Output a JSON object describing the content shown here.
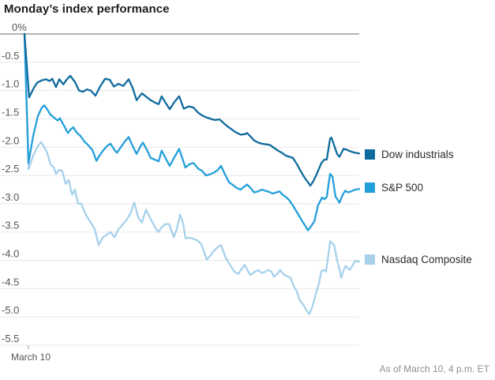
{
  "header": {
    "title": "Monday’s index performance"
  },
  "footer": {
    "note": "As of March 10, 4 p.m. ET"
  },
  "chart_data": {
    "type": "line",
    "title": "Monday’s index performance",
    "x_axis": {
      "tick_label": "March 10"
    },
    "y_axis": {
      "unit": "%",
      "min": -5.5,
      "max": 0,
      "ticks": [
        {
          "label": "0%",
          "value": 0
        },
        {
          "label": "-0.5",
          "value": -0.5
        },
        {
          "label": "-1.0",
          "value": -1.0
        },
        {
          "label": "-1.5",
          "value": -1.5
        },
        {
          "label": "-2.0",
          "value": -2.0
        },
        {
          "label": "-2.5",
          "value": -2.5
        },
        {
          "label": "-3.0",
          "value": -3.0
        },
        {
          "label": "-3.5",
          "value": -3.5
        },
        {
          "label": "-4.0",
          "value": -4.0
        },
        {
          "label": "-4.5",
          "value": -4.5
        },
        {
          "label": "-5.0",
          "value": -5.0
        },
        {
          "label": "-5.5",
          "value": -5.5
        }
      ]
    },
    "style": {
      "gridline_color": "#e8e8e8",
      "zero_line_color": "#9b9b9b",
      "tick_text_color": "#555555",
      "axis_tick_color": "#999999"
    },
    "legend_position": "right",
    "series": [
      {
        "name": "Nasdaq Composite",
        "color": "#a7d1eb",
        "points": [
          [
            0,
            0
          ],
          [
            0.012,
            -2.39
          ],
          [
            0.026,
            -2.15
          ],
          [
            0.04,
            -1.98
          ],
          [
            0.05,
            -1.91
          ],
          [
            0.059,
            -2.0
          ],
          [
            0.068,
            -2.1
          ],
          [
            0.078,
            -2.31
          ],
          [
            0.087,
            -2.35
          ],
          [
            0.094,
            -2.47
          ],
          [
            0.104,
            -2.4
          ],
          [
            0.113,
            -2.42
          ],
          [
            0.123,
            -2.65
          ],
          [
            0.132,
            -2.58
          ],
          [
            0.142,
            -2.84
          ],
          [
            0.151,
            -2.75
          ],
          [
            0.16,
            -3.0
          ],
          [
            0.17,
            -3.0
          ],
          [
            0.179,
            -3.14
          ],
          [
            0.189,
            -3.25
          ],
          [
            0.2,
            -3.35
          ],
          [
            0.21,
            -3.45
          ],
          [
            0.222,
            -3.73
          ],
          [
            0.233,
            -3.6
          ],
          [
            0.245,
            -3.55
          ],
          [
            0.257,
            -3.5
          ],
          [
            0.269,
            -3.59
          ],
          [
            0.281,
            -3.45
          ],
          [
            0.292,
            -3.38
          ],
          [
            0.304,
            -3.29
          ],
          [
            0.316,
            -3.18
          ],
          [
            0.328,
            -2.98
          ],
          [
            0.34,
            -3.25
          ],
          [
            0.351,
            -3.33
          ],
          [
            0.363,
            -3.1
          ],
          [
            0.375,
            -3.25
          ],
          [
            0.389,
            -3.4
          ],
          [
            0.399,
            -3.5
          ],
          [
            0.41,
            -3.42
          ],
          [
            0.42,
            -3.36
          ],
          [
            0.432,
            -3.36
          ],
          [
            0.446,
            -3.59
          ],
          [
            0.455,
            -3.45
          ],
          [
            0.465,
            -3.19
          ],
          [
            0.474,
            -3.35
          ],
          [
            0.481,
            -3.61
          ],
          [
            0.493,
            -3.6
          ],
          [
            0.505,
            -3.62
          ],
          [
            0.517,
            -3.65
          ],
          [
            0.528,
            -3.71
          ],
          [
            0.545,
            -3.99
          ],
          [
            0.557,
            -3.9
          ],
          [
            0.568,
            -3.82
          ],
          [
            0.578,
            -3.76
          ],
          [
            0.587,
            -3.73
          ],
          [
            0.601,
            -3.95
          ],
          [
            0.616,
            -4.1
          ],
          [
            0.627,
            -4.2
          ],
          [
            0.639,
            -4.24
          ],
          [
            0.649,
            -4.15
          ],
          [
            0.658,
            -4.08
          ],
          [
            0.667,
            -4.18
          ],
          [
            0.675,
            -4.26
          ],
          [
            0.686,
            -4.21
          ],
          [
            0.698,
            -4.17
          ],
          [
            0.708,
            -4.22
          ],
          [
            0.717,
            -4.21
          ],
          [
            0.729,
            -4.17
          ],
          [
            0.738,
            -4.2
          ],
          [
            0.745,
            -4.29
          ],
          [
            0.755,
            -4.24
          ],
          [
            0.764,
            -4.17
          ],
          [
            0.776,
            -4.26
          ],
          [
            0.785,
            -4.28
          ],
          [
            0.795,
            -4.31
          ],
          [
            0.804,
            -4.45
          ],
          [
            0.814,
            -4.55
          ],
          [
            0.823,
            -4.71
          ],
          [
            0.835,
            -4.8
          ],
          [
            0.842,
            -4.88
          ],
          [
            0.851,
            -4.95
          ],
          [
            0.861,
            -4.8
          ],
          [
            0.87,
            -4.6
          ],
          [
            0.88,
            -4.4
          ],
          [
            0.887,
            -4.19
          ],
          [
            0.894,
            -4.17
          ],
          [
            0.901,
            -4.2
          ],
          [
            0.908,
            -3.9
          ],
          [
            0.913,
            -3.66
          ],
          [
            0.92,
            -3.7
          ],
          [
            0.925,
            -3.73
          ],
          [
            0.934,
            -4.0
          ],
          [
            0.941,
            -4.15
          ],
          [
            0.946,
            -4.31
          ],
          [
            0.955,
            -4.15
          ],
          [
            0.96,
            -4.1
          ],
          [
            0.967,
            -4.15
          ],
          [
            0.972,
            -4.17
          ],
          [
            0.981,
            -4.08
          ],
          [
            0.988,
            -4.01
          ],
          [
            0.995,
            -4.02
          ],
          [
            1,
            -4.02
          ]
        ]
      },
      {
        "name": "S&P 500",
        "color": "#239fda",
        "points": [
          [
            0,
            0
          ],
          [
            0.012,
            -2.28
          ],
          [
            0.026,
            -1.8
          ],
          [
            0.04,
            -1.45
          ],
          [
            0.052,
            -1.3
          ],
          [
            0.059,
            -1.26
          ],
          [
            0.068,
            -1.33
          ],
          [
            0.078,
            -1.43
          ],
          [
            0.087,
            -1.47
          ],
          [
            0.099,
            -1.53
          ],
          [
            0.106,
            -1.49
          ],
          [
            0.116,
            -1.6
          ],
          [
            0.13,
            -1.75
          ],
          [
            0.139,
            -1.68
          ],
          [
            0.146,
            -1.65
          ],
          [
            0.156,
            -1.74
          ],
          [
            0.167,
            -1.8
          ],
          [
            0.179,
            -1.9
          ],
          [
            0.191,
            -1.97
          ],
          [
            0.203,
            -2.05
          ],
          [
            0.215,
            -2.24
          ],
          [
            0.224,
            -2.15
          ],
          [
            0.236,
            -2.05
          ],
          [
            0.248,
            -1.97
          ],
          [
            0.257,
            -1.94
          ],
          [
            0.269,
            -2.05
          ],
          [
            0.276,
            -2.1
          ],
          [
            0.288,
            -2.0
          ],
          [
            0.3,
            -1.9
          ],
          [
            0.311,
            -1.82
          ],
          [
            0.323,
            -1.98
          ],
          [
            0.335,
            -2.12
          ],
          [
            0.347,
            -1.98
          ],
          [
            0.354,
            -1.92
          ],
          [
            0.366,
            -2.05
          ],
          [
            0.377,
            -2.19
          ],
          [
            0.389,
            -2.22
          ],
          [
            0.401,
            -2.25
          ],
          [
            0.41,
            -2.06
          ],
          [
            0.422,
            -2.2
          ],
          [
            0.434,
            -2.33
          ],
          [
            0.446,
            -2.2
          ],
          [
            0.462,
            -2.03
          ],
          [
            0.472,
            -2.2
          ],
          [
            0.481,
            -2.36
          ],
          [
            0.493,
            -2.3
          ],
          [
            0.505,
            -2.28
          ],
          [
            0.519,
            -2.38
          ],
          [
            0.531,
            -2.42
          ],
          [
            0.542,
            -2.5
          ],
          [
            0.554,
            -2.48
          ],
          [
            0.566,
            -2.45
          ],
          [
            0.578,
            -2.4
          ],
          [
            0.587,
            -2.33
          ],
          [
            0.599,
            -2.48
          ],
          [
            0.611,
            -2.62
          ],
          [
            0.623,
            -2.67
          ],
          [
            0.634,
            -2.72
          ],
          [
            0.646,
            -2.75
          ],
          [
            0.656,
            -2.7
          ],
          [
            0.665,
            -2.66
          ],
          [
            0.677,
            -2.73
          ],
          [
            0.686,
            -2.8
          ],
          [
            0.698,
            -2.78
          ],
          [
            0.71,
            -2.75
          ],
          [
            0.719,
            -2.77
          ],
          [
            0.731,
            -2.79
          ],
          [
            0.741,
            -2.82
          ],
          [
            0.752,
            -2.8
          ],
          [
            0.762,
            -2.78
          ],
          [
            0.771,
            -2.84
          ],
          [
            0.781,
            -2.88
          ],
          [
            0.79,
            -2.93
          ],
          [
            0.802,
            -3.03
          ],
          [
            0.816,
            -3.17
          ],
          [
            0.83,
            -3.31
          ],
          [
            0.84,
            -3.4
          ],
          [
            0.847,
            -3.47
          ],
          [
            0.856,
            -3.4
          ],
          [
            0.866,
            -3.31
          ],
          [
            0.877,
            -3.03
          ],
          [
            0.889,
            -2.89
          ],
          [
            0.896,
            -2.92
          ],
          [
            0.903,
            -2.88
          ],
          [
            0.913,
            -2.47
          ],
          [
            0.92,
            -2.52
          ],
          [
            0.929,
            -2.87
          ],
          [
            0.941,
            -2.98
          ],
          [
            0.95,
            -2.85
          ],
          [
            0.958,
            -2.77
          ],
          [
            0.967,
            -2.8
          ],
          [
            0.976,
            -2.78
          ],
          [
            0.988,
            -2.75
          ],
          [
            1,
            -2.74
          ]
        ]
      },
      {
        "name": "Dow industrials",
        "color": "#0f6b9d",
        "points": [
          [
            0,
            0
          ],
          [
            0.014,
            -1.12
          ],
          [
            0.028,
            -0.95
          ],
          [
            0.038,
            -0.86
          ],
          [
            0.052,
            -0.82
          ],
          [
            0.064,
            -0.8
          ],
          [
            0.075,
            -0.83
          ],
          [
            0.083,
            -0.79
          ],
          [
            0.094,
            -0.94
          ],
          [
            0.104,
            -0.8
          ],
          [
            0.116,
            -0.89
          ],
          [
            0.127,
            -0.8
          ],
          [
            0.137,
            -0.74
          ],
          [
            0.151,
            -0.85
          ],
          [
            0.163,
            -1.0
          ],
          [
            0.175,
            -1.02
          ],
          [
            0.186,
            -0.98
          ],
          [
            0.198,
            -1.0
          ],
          [
            0.212,
            -1.09
          ],
          [
            0.226,
            -0.93
          ],
          [
            0.241,
            -0.79
          ],
          [
            0.255,
            -0.81
          ],
          [
            0.267,
            -0.93
          ],
          [
            0.281,
            -0.88
          ],
          [
            0.295,
            -0.92
          ],
          [
            0.311,
            -0.8
          ],
          [
            0.323,
            -0.95
          ],
          [
            0.335,
            -1.17
          ],
          [
            0.351,
            -1.05
          ],
          [
            0.366,
            -1.12
          ],
          [
            0.377,
            -1.17
          ],
          [
            0.392,
            -1.22
          ],
          [
            0.401,
            -1.24
          ],
          [
            0.41,
            -1.1
          ],
          [
            0.422,
            -1.22
          ],
          [
            0.434,
            -1.33
          ],
          [
            0.448,
            -1.2
          ],
          [
            0.462,
            -1.1
          ],
          [
            0.476,
            -1.32
          ],
          [
            0.491,
            -1.28
          ],
          [
            0.505,
            -1.3
          ],
          [
            0.517,
            -1.38
          ],
          [
            0.531,
            -1.44
          ],
          [
            0.542,
            -1.47
          ],
          [
            0.557,
            -1.5
          ],
          [
            0.568,
            -1.52
          ],
          [
            0.583,
            -1.51
          ],
          [
            0.594,
            -1.57
          ],
          [
            0.606,
            -1.63
          ],
          [
            0.62,
            -1.69
          ],
          [
            0.632,
            -1.74
          ],
          [
            0.646,
            -1.78
          ],
          [
            0.658,
            -1.77
          ],
          [
            0.665,
            -1.75
          ],
          [
            0.677,
            -1.82
          ],
          [
            0.686,
            -1.88
          ],
          [
            0.698,
            -1.92
          ],
          [
            0.71,
            -1.94
          ],
          [
            0.722,
            -1.95
          ],
          [
            0.733,
            -1.96
          ],
          [
            0.745,
            -2.01
          ],
          [
            0.757,
            -2.06
          ],
          [
            0.769,
            -2.1
          ],
          [
            0.781,
            -2.15
          ],
          [
            0.792,
            -2.17
          ],
          [
            0.802,
            -2.19
          ],
          [
            0.814,
            -2.3
          ],
          [
            0.825,
            -2.42
          ],
          [
            0.837,
            -2.54
          ],
          [
            0.847,
            -2.62
          ],
          [
            0.854,
            -2.68
          ],
          [
            0.863,
            -2.6
          ],
          [
            0.875,
            -2.45
          ],
          [
            0.887,
            -2.28
          ],
          [
            0.896,
            -2.22
          ],
          [
            0.903,
            -2.22
          ],
          [
            0.913,
            -1.85
          ],
          [
            0.917,
            -1.83
          ],
          [
            0.927,
            -2.0
          ],
          [
            0.934,
            -2.12
          ],
          [
            0.941,
            -2.17
          ],
          [
            0.953,
            -2.03
          ],
          [
            0.965,
            -2.05
          ],
          [
            0.976,
            -2.08
          ],
          [
            0.988,
            -2.1
          ],
          [
            1,
            -2.11
          ]
        ]
      }
    ],
    "legend_order": [
      2,
      1,
      0
    ]
  }
}
